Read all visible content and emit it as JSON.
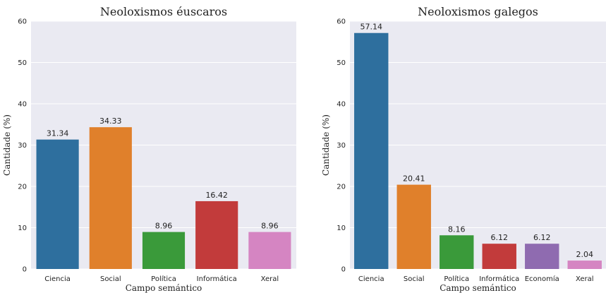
{
  "chart_data": [
    {
      "type": "bar",
      "title": "Neoloxismos éuscaros",
      "xlabel": "Campo semántico",
      "ylabel": "Cantidade (%)",
      "ylim": [
        0,
        60
      ],
      "yticks": [
        0,
        10,
        20,
        30,
        40,
        50,
        60
      ],
      "grid": true,
      "categories": [
        "Ciencia",
        "Social",
        "Política",
        "Informática",
        "Xeral"
      ],
      "values": [
        31.34,
        34.33,
        8.96,
        16.42,
        8.96
      ],
      "value_labels": [
        "31.34",
        "34.33",
        "8.96",
        "16.42",
        "8.96"
      ],
      "colors": [
        "#2e6f9e",
        "#e0802b",
        "#3a9a3a",
        "#c23b3b",
        "#d585c2"
      ]
    },
    {
      "type": "bar",
      "title": "Neoloxismos galegos",
      "xlabel": "Campo semántico",
      "ylabel": "Cantidade (%)",
      "ylim": [
        0,
        60
      ],
      "yticks": [
        0,
        10,
        20,
        30,
        40,
        50,
        60
      ],
      "grid": true,
      "categories": [
        "Ciencia",
        "Social",
        "Política",
        "Informática",
        "Economía",
        "Xeral"
      ],
      "values": [
        57.14,
        20.41,
        8.16,
        6.12,
        6.12,
        2.04
      ],
      "value_labels": [
        "57.14",
        "20.41",
        "8.16",
        "6.12",
        "6.12",
        "2.04"
      ],
      "colors": [
        "#2e6f9e",
        "#e0802b",
        "#3a9a3a",
        "#c23b3b",
        "#8f6bb0",
        "#d585c2"
      ]
    }
  ]
}
